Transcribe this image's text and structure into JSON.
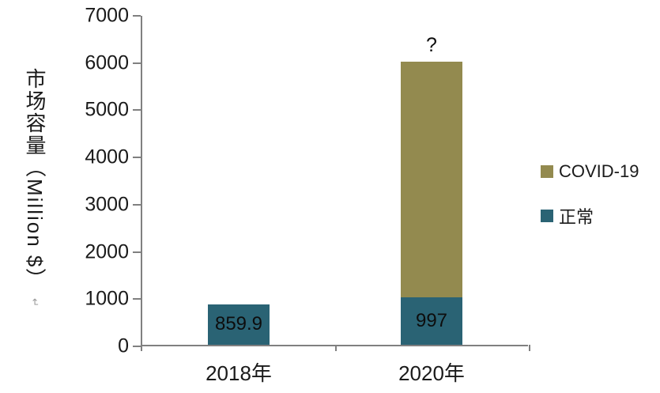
{
  "chart": {
    "y_axis_title": "市场容量（Million $）",
    "return_mark": "↵"
  },
  "chart_data": {
    "type": "bar",
    "stacked": true,
    "title": "",
    "categories": [
      "2018年",
      "2020年"
    ],
    "series": [
      {
        "name": "正常",
        "color": "#2A6374",
        "values": [
          859.9,
          997
        ]
      },
      {
        "name": "COVID-19",
        "color": "#938A4F",
        "values": [
          0,
          5000
        ]
      }
    ],
    "value_labels": [
      {
        "category_index": 0,
        "text": "859.9",
        "placement": "inside-bottom"
      },
      {
        "category_index": 1,
        "text": "997",
        "placement": "inside-bottom"
      },
      {
        "category_index": 1,
        "text": "?",
        "placement": "above"
      }
    ],
    "ylabel": "市场容量（Million $）",
    "xlabel": "",
    "ylim": [
      0,
      7000
    ],
    "yticks": [
      0,
      1000,
      2000,
      3000,
      4000,
      5000,
      6000,
      7000
    ],
    "grid": false,
    "legend": {
      "position": "right",
      "items": [
        {
          "label": "COVID-19",
          "color": "#938A4F"
        },
        {
          "label": "正常",
          "color": "#2A6374"
        }
      ]
    },
    "axis_color": "#808080",
    "text_color": "#1a1a1a"
  }
}
